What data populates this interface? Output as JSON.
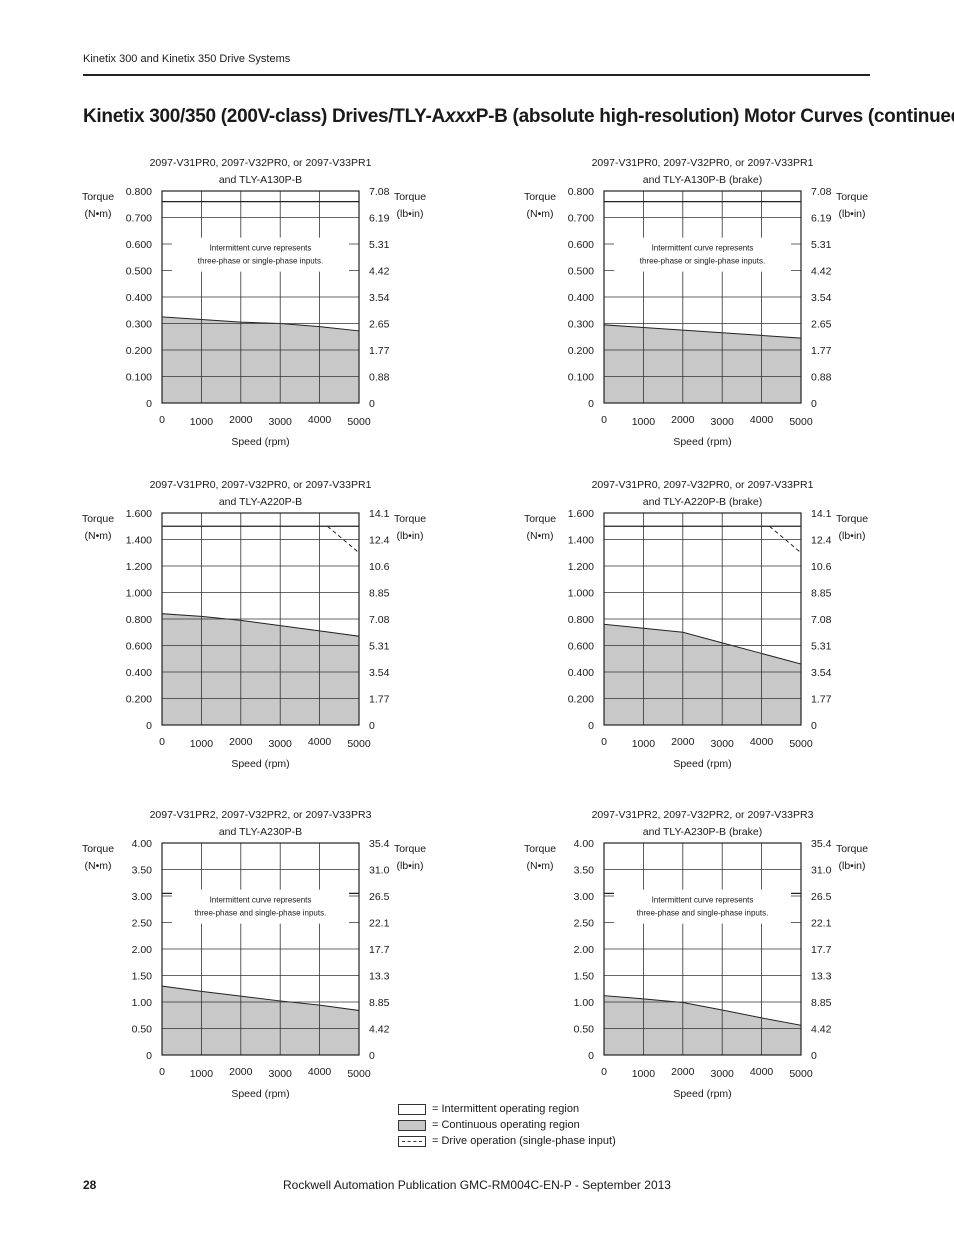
{
  "header": {
    "text": "Kinetix 300 and Kinetix 350 Drive Systems"
  },
  "title": {
    "pre": "Kinetix 300/350 (200V-class) Drives/TLY-A",
    "italic": "xxx",
    "post": "P-B (absolute high-resolution) Motor Curves (continued)"
  },
  "colors": {
    "continuous": "#c8c8c8",
    "grid": "#333333",
    "axis": "#222222"
  },
  "chart_data": [
    {
      "type": "area",
      "title_line1": "2097-V31PR0, 2097-V32PR0, or 2097-V33PR1",
      "title_line2": "and TLY-A130P-B",
      "ylabel_left": [
        "Torque",
        "(N•m)"
      ],
      "ylabel_right": [
        "Torque",
        "(lb•in)"
      ],
      "xlabel": "Speed (rpm)",
      "xlim": [
        0,
        5000
      ],
      "ylim": [
        0,
        0.8
      ],
      "x_ticks": [
        "0",
        "1000",
        "2000",
        "3000",
        "4000",
        "5000"
      ],
      "y_ticks_left": [
        "0",
        "0.100",
        "0.200",
        "0.300",
        "0.400",
        "0.500",
        "0.600",
        "0.700",
        "0.800"
      ],
      "y_ticks_right": [
        "0",
        "0.88",
        "1.77",
        "2.65",
        "3.54",
        "4.42",
        "5.31",
        "6.19",
        "7.08"
      ],
      "note": [
        "Intermittent curve represents",
        "three-phase or single-phase inputs."
      ],
      "continuous": {
        "x": [
          0,
          1000,
          2000,
          3000,
          4000,
          5000
        ],
        "y": [
          0.325,
          0.315,
          0.305,
          0.3,
          0.288,
          0.272
        ]
      },
      "intermittent": {
        "x": [
          0,
          5000
        ],
        "y": [
          0.76,
          0.76
        ]
      },
      "single_phase": null
    },
    {
      "type": "area",
      "title_line1": "2097-V31PR0, 2097-V32PR0, or 2097-V33PR1",
      "title_line2": "and TLY-A130P-B (brake)",
      "ylabel_left": [
        "Torque",
        "(N•m)"
      ],
      "ylabel_right": [
        "Torque",
        "(lb•in)"
      ],
      "xlabel": "Speed (rpm)",
      "xlim": [
        0,
        5000
      ],
      "ylim": [
        0,
        0.8
      ],
      "x_ticks": [
        "0",
        "1000",
        "2000",
        "3000",
        "4000",
        "5000"
      ],
      "y_ticks_left": [
        "0",
        "0.100",
        "0.200",
        "0.300",
        "0.400",
        "0.500",
        "0.600",
        "0.700",
        "0.800"
      ],
      "y_ticks_right": [
        "0",
        "0.88",
        "1.77",
        "2.65",
        "3.54",
        "4.42",
        "5.31",
        "6.19",
        "7.08"
      ],
      "note": [
        "Intermittent curve represents",
        "three-phase or single-phase inputs."
      ],
      "continuous": {
        "x": [
          0,
          1000,
          2000,
          3000,
          4000,
          5000
        ],
        "y": [
          0.295,
          0.285,
          0.275,
          0.265,
          0.255,
          0.245
        ]
      },
      "intermittent": {
        "x": [
          0,
          5000
        ],
        "y": [
          0.76,
          0.76
        ]
      },
      "single_phase": null
    },
    {
      "type": "area",
      "title_line1": "2097-V31PR0, 2097-V32PR0, or 2097-V33PR1",
      "title_line2": "and TLY-A220P-B",
      "ylabel_left": [
        "Torque",
        "(N•m)"
      ],
      "ylabel_right": [
        "Torque",
        "(lb•in)"
      ],
      "xlabel": "Speed (rpm)",
      "xlim": [
        0,
        5000
      ],
      "ylim": [
        0,
        1.6
      ],
      "x_ticks": [
        "0",
        "1000",
        "2000",
        "3000",
        "4000",
        "5000"
      ],
      "y_ticks_left": [
        "0",
        "0.200",
        "0.400",
        "0.600",
        "0.800",
        "1.000",
        "1.200",
        "1.400",
        "1.600"
      ],
      "y_ticks_right": [
        "0",
        "1.77",
        "3.54",
        "5.31",
        "7.08",
        "8.85",
        "10.6",
        "12.4",
        "14.1"
      ],
      "note": null,
      "continuous": {
        "x": [
          0,
          1000,
          2000,
          3000,
          4000,
          5000
        ],
        "y": [
          0.84,
          0.82,
          0.79,
          0.75,
          0.71,
          0.67
        ]
      },
      "intermittent": {
        "x": [
          0,
          5000
        ],
        "y": [
          1.5,
          1.5
        ]
      },
      "single_phase": {
        "x": [
          4200,
          5000
        ],
        "y": [
          1.5,
          1.3
        ]
      }
    },
    {
      "type": "area",
      "title_line1": "2097-V31PR0, 2097-V32PR0, or 2097-V33PR1",
      "title_line2": "and TLY-A220P-B (brake)",
      "ylabel_left": [
        "Torque",
        "(N•m)"
      ],
      "ylabel_right": [
        "Torque",
        "(lb•in)"
      ],
      "xlabel": "Speed (rpm)",
      "xlim": [
        0,
        5000
      ],
      "ylim": [
        0,
        1.6
      ],
      "x_ticks": [
        "0",
        "1000",
        "2000",
        "3000",
        "4000",
        "5000"
      ],
      "y_ticks_left": [
        "0",
        "0.200",
        "0.400",
        "0.600",
        "0.800",
        "1.000",
        "1.200",
        "1.400",
        "1.600"
      ],
      "y_ticks_right": [
        "0",
        "1.77",
        "3.54",
        "5.31",
        "7.08",
        "8.85",
        "10.6",
        "12.4",
        "14.1"
      ],
      "note": null,
      "continuous": {
        "x": [
          0,
          1000,
          2000,
          3000,
          4000,
          5000
        ],
        "y": [
          0.76,
          0.73,
          0.7,
          0.62,
          0.54,
          0.46
        ]
      },
      "intermittent": {
        "x": [
          0,
          5000
        ],
        "y": [
          1.5,
          1.5
        ]
      },
      "single_phase": {
        "x": [
          4200,
          5000
        ],
        "y": [
          1.5,
          1.3
        ]
      }
    },
    {
      "type": "area",
      "title_line1": "2097-V31PR2, 2097-V32PR2, or 2097-V33PR3",
      "title_line2": "and TLY-A230P-B",
      "ylabel_left": [
        "Torque",
        "(N•m)"
      ],
      "ylabel_right": [
        "Torque",
        "(lb•in)"
      ],
      "xlabel": "Speed (rpm)",
      "xlim": [
        0,
        5000
      ],
      "ylim": [
        0,
        4.0
      ],
      "x_ticks": [
        "0",
        "1000",
        "2000",
        "3000",
        "4000",
        "5000"
      ],
      "y_ticks_left": [
        "0",
        "0.50",
        "1.00",
        "1.50",
        "2.00",
        "2.50",
        "3.00",
        "3.50",
        "4.00"
      ],
      "y_ticks_right": [
        "0",
        "4.42",
        "8.85",
        "13.3",
        "17.7",
        "22.1",
        "26.5",
        "31.0",
        "35.4"
      ],
      "note": [
        "Intermittent curve represents",
        "three-phase and single-phase inputs."
      ],
      "continuous": {
        "x": [
          0,
          1000,
          2000,
          3000,
          4000,
          5000
        ],
        "y": [
          1.3,
          1.2,
          1.11,
          1.02,
          0.94,
          0.84
        ]
      },
      "intermittent": {
        "x": [
          0,
          5000
        ],
        "y": [
          3.05,
          3.05
        ]
      },
      "single_phase": null
    },
    {
      "type": "area",
      "title_line1": "2097-V31PR2, 2097-V32PR2, or 2097-V33PR3",
      "title_line2": "and TLY-A230P-B (brake)",
      "ylabel_left": [
        "Torque",
        "(N•m)"
      ],
      "ylabel_right": [
        "Torque",
        "(lb•in)"
      ],
      "xlabel": "Speed (rpm)",
      "xlim": [
        0,
        5000
      ],
      "ylim": [
        0,
        4.0
      ],
      "x_ticks": [
        "0",
        "1000",
        "2000",
        "3000",
        "4000",
        "5000"
      ],
      "y_ticks_left": [
        "0",
        "0.50",
        "1.00",
        "1.50",
        "2.00",
        "2.50",
        "3.00",
        "3.50",
        "4.00"
      ],
      "y_ticks_right": [
        "0",
        "4.42",
        "8.85",
        "13.3",
        "17.7",
        "22.1",
        "26.5",
        "31.0",
        "35.4"
      ],
      "note": [
        "Intermittent curve represents",
        "three-phase and single-phase inputs."
      ],
      "continuous": {
        "x": [
          0,
          1000,
          2000,
          3000,
          4000,
          5000
        ],
        "y": [
          1.12,
          1.06,
          0.99,
          0.85,
          0.7,
          0.56
        ]
      },
      "intermittent": {
        "x": [
          0,
          5000
        ],
        "y": [
          3.05,
          3.05
        ]
      },
      "single_phase": null
    }
  ],
  "legend": {
    "intermittent": "= Intermittent operating region",
    "continuous": "= Continuous operating region",
    "single_phase": "= Drive operation (single-phase input)"
  },
  "footer": {
    "page_number": "28",
    "publication": "Rockwell Automation Publication GMC-RM004C-EN-P - September 2013"
  }
}
